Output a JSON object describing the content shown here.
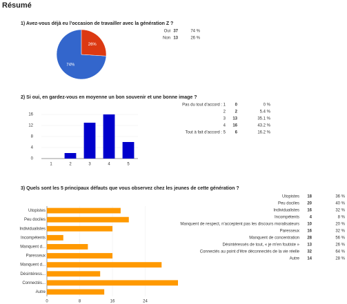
{
  "page_title": "Résumé",
  "chart_data": [
    {
      "type": "pie",
      "title": "1) Avez-vous déjà eu l'occasion de travailler avec la génération Z ?",
      "categories": [
        "Oui",
        "Non"
      ],
      "values": [
        37,
        13
      ],
      "colors": [
        "#3366cc",
        "#dc3912"
      ],
      "slice_labels": [
        "74%",
        "26%"
      ],
      "percents": [
        74,
        26
      ],
      "percent_labels": [
        "74 %",
        "26 %"
      ]
    },
    {
      "type": "bar",
      "title": "2) Si oui, en gardez-vous en moyenne un bon souvenir et une bonne image ?",
      "categories": [
        "1",
        "2",
        "3",
        "4",
        "5"
      ],
      "values": [
        0,
        2,
        13,
        16,
        6
      ],
      "color": "#0000cc",
      "ylim": [
        0,
        16
      ],
      "yticks": [
        0,
        4,
        8,
        12,
        16
      ],
      "table_labels": [
        "Pas du tout d'accord : 1",
        "2",
        "3",
        "4",
        "Tout à fait d'accord : 5"
      ],
      "percents": [
        0,
        5.4,
        35.1,
        43.2,
        16.2
      ],
      "percent_labels": [
        "0 %",
        "5.4 %",
        "35.1 %",
        "43.2 %",
        "16.2 %"
      ]
    },
    {
      "type": "hbar",
      "title": "3) Quels sont les 5 principaux défauts que vous observez chez les jeunes de cette génération ?",
      "categories": [
        "Utopistes",
        "Peu dociles",
        "Individualistes",
        "Incompétents",
        "Manquent d...",
        "Paresseux",
        "Manquent d...",
        "Désintéress...",
        "Connectés...",
        "Autre"
      ],
      "values": [
        18,
        20,
        16,
        4,
        10,
        16,
        28,
        13,
        32,
        14
      ],
      "color": "#ff9900",
      "xlim": [
        0,
        32
      ],
      "xticks": [
        0,
        8,
        16,
        24
      ],
      "table_labels": [
        "Utopistes",
        "Peu dociles",
        "Individualistes",
        "Incompétents",
        "Manquent de respect, n'acceptent pas les discours moralisateurs",
        "Paresseux",
        "Manquent de concentration",
        "Désintéressés de tout, « je m'en foutiste »",
        "Connectés au point d'être déconnectés de la vie réelle",
        "Autre"
      ],
      "percents": [
        36,
        40,
        32,
        8,
        20,
        32,
        56,
        26,
        64,
        28
      ],
      "percent_labels": [
        "36 %",
        "40 %",
        "32 %",
        "8 %",
        "20 %",
        "32 %",
        "56 %",
        "26 %",
        "64 %",
        "28 %"
      ]
    }
  ]
}
